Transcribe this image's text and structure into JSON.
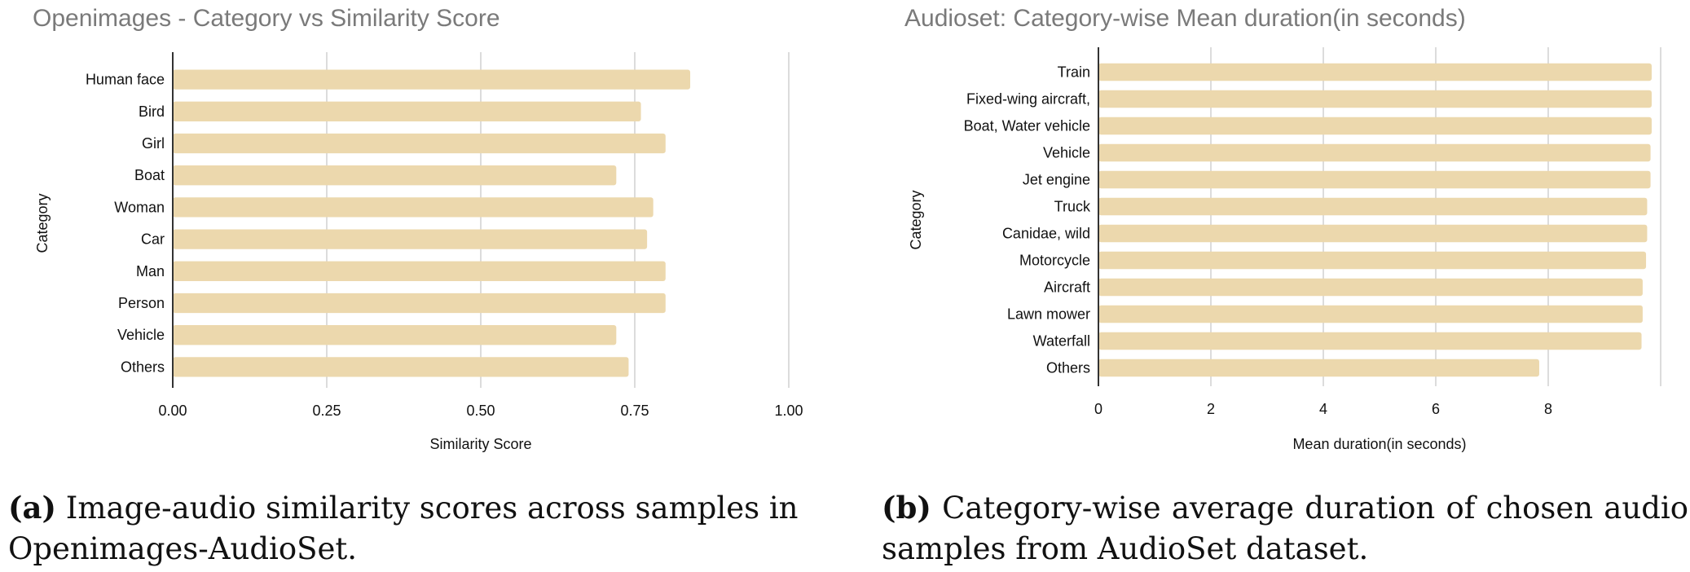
{
  "chart_data": [
    {
      "type": "bar",
      "orientation": "horizontal",
      "title": "Openimages - Category vs Similarity Score",
      "xlabel": "Similarity Score",
      "ylabel": "Category",
      "categories": [
        "Human face",
        "Bird",
        "Girl",
        "Boat",
        "Woman",
        "Car",
        "Man",
        "Person",
        "Vehicle",
        "Others"
      ],
      "values": [
        0.84,
        0.76,
        0.8,
        0.72,
        0.78,
        0.77,
        0.8,
        0.8,
        0.72,
        0.74
      ],
      "xlim": [
        0,
        1.0
      ],
      "xticks": [
        "0.00",
        "0.25",
        "0.50",
        "0.75",
        "1.00"
      ],
      "grid": "vertical",
      "bar_color": "#ecd8ad",
      "caption_label": "(a)",
      "caption_text": "Image-audio similarity scores across samples in Openimages-AudioSet."
    },
    {
      "type": "bar",
      "orientation": "horizontal",
      "title": "Audioset: Category-wise Mean duration(in seconds)",
      "xlabel": "Mean duration(in seconds)",
      "ylabel": "Category",
      "categories": [
        "Train",
        "Fixed-wing aircraft,",
        "Boat, Water vehicle",
        "Vehicle",
        "Jet engine",
        "Truck",
        "Canidae, wild",
        "Motorcycle",
        "Aircraft",
        "Lawn mower",
        "Waterfall",
        "Others"
      ],
      "values": [
        9.84,
        9.84,
        9.84,
        9.82,
        9.82,
        9.76,
        9.76,
        9.74,
        9.68,
        9.68,
        9.66,
        7.84
      ],
      "xlim": [
        0,
        10
      ],
      "xticks": [
        "0",
        "2",
        "4",
        "6",
        "8"
      ],
      "grid": "vertical",
      "bar_color": "#ecd8ad",
      "caption_label": "(b)",
      "caption_text": "Category-wise average duration of chosen audio samples from AudioSet dataset."
    }
  ]
}
